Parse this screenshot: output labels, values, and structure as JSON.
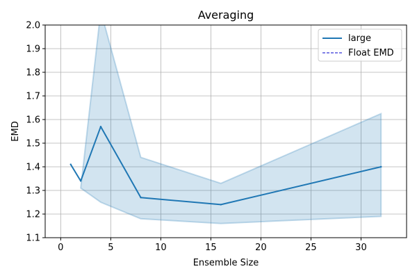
{
  "chart_data": {
    "type": "line",
    "title": "Averaging",
    "xlabel": "Ensemble Size",
    "ylabel": "EMD",
    "xlim": [
      -1.55,
      34.55
    ],
    "ylim": [
      1.1,
      2.0
    ],
    "xticks": [
      0,
      5,
      10,
      15,
      20,
      25,
      30
    ],
    "yticks": [
      1.1,
      1.2,
      1.3,
      1.4,
      1.5,
      1.6,
      1.7,
      1.8,
      1.9,
      2.0
    ],
    "grid": true,
    "legend_position": "top-right",
    "series": [
      {
        "name": "large",
        "style": "solid",
        "color": "#1f77b4",
        "x": [
          1,
          2,
          4,
          8,
          16,
          32
        ],
        "y": [
          1.41,
          1.34,
          1.57,
          1.27,
          1.24,
          1.4
        ],
        "band_lower": [
          null,
          1.31,
          1.25,
          1.18,
          1.16,
          1.19
        ],
        "band_upper": [
          null,
          1.31,
          2.06,
          1.44,
          1.33,
          1.625
        ],
        "band_color": "#1f77b4"
      },
      {
        "name": "Float EMD",
        "style": "dashed",
        "color": "#0000cc",
        "x": [],
        "y": []
      }
    ]
  }
}
